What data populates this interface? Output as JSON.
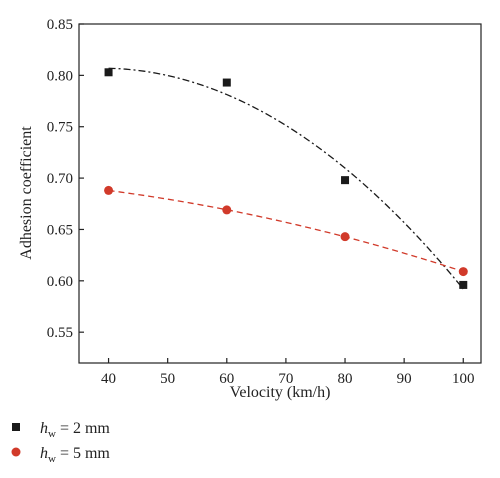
{
  "chart_data": {
    "type": "scatter",
    "xlabel": "Velocity (km/h)",
    "ylabel": "Adhesion coefficient",
    "xlim": [
      35,
      103
    ],
    "ylim": [
      0.52,
      0.85
    ],
    "xticks": [
      40,
      50,
      60,
      70,
      80,
      90,
      100
    ],
    "yticks": [
      0.55,
      0.6,
      0.65,
      0.7,
      0.75,
      0.8,
      0.85
    ],
    "xtick_labels": [
      "40",
      "50",
      "60",
      "70",
      "80",
      "90",
      "100"
    ],
    "ytick_labels": [
      "0.55",
      "0.60",
      "0.65",
      "0.70",
      "0.75",
      "0.80",
      "0.85"
    ],
    "legend_position": "bottom-left",
    "series": [
      {
        "legend_symbol": "h",
        "legend_subscript": "w",
        "legend_text": " = 2 mm",
        "marker": "square",
        "color": "#1a1a1a",
        "fit_line": "dash-dot",
        "x": [
          40,
          60,
          80,
          100
        ],
        "y": [
          0.803,
          0.793,
          0.698,
          0.596
        ]
      },
      {
        "legend_symbol": "h",
        "legend_subscript": "w",
        "legend_text": " = 5 mm",
        "marker": "circle",
        "color": "#d13a2a",
        "fit_line": "dashed",
        "x": [
          40,
          60,
          80,
          100
        ],
        "y": [
          0.688,
          0.669,
          0.643,
          0.609
        ]
      }
    ]
  }
}
